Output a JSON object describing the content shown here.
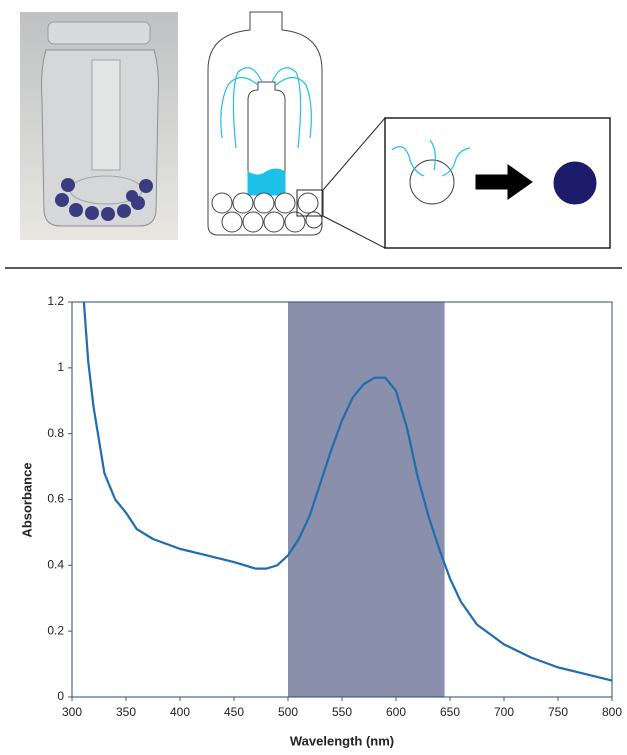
{
  "chart_data": {
    "type": "line",
    "y_label": "Absorbance",
    "x_label": "Wavelength (nm)",
    "xlim": [
      300,
      800
    ],
    "ylim": [
      0,
      1.2
    ],
    "xticks": [
      300,
      350,
      400,
      450,
      500,
      550,
      600,
      650,
      700,
      750,
      800
    ],
    "yticks": [
      0,
      0.2,
      0.4,
      0.6,
      0.8,
      1,
      1.2
    ],
    "highlight_band": [
      500,
      645
    ],
    "band_color": "#8a8fab",
    "series": [
      {
        "color": "#1f6db0",
        "x": [
          311,
          315,
          320,
          330,
          340,
          350,
          360,
          375,
          400,
          425,
          450,
          470,
          480,
          490,
          500,
          510,
          520,
          530,
          540,
          550,
          560,
          570,
          580,
          590,
          600,
          610,
          620,
          630,
          640,
          650,
          660,
          675,
          700,
          725,
          750,
          775,
          800
        ],
        "values": [
          1.2,
          1.02,
          0.88,
          0.68,
          0.6,
          0.56,
          0.51,
          0.48,
          0.45,
          0.43,
          0.41,
          0.39,
          0.39,
          0.4,
          0.43,
          0.48,
          0.55,
          0.65,
          0.75,
          0.84,
          0.91,
          0.95,
          0.97,
          0.97,
          0.93,
          0.82,
          0.67,
          0.55,
          0.45,
          0.36,
          0.29,
          0.22,
          0.16,
          0.12,
          0.09,
          0.07,
          0.05
        ]
      }
    ]
  }
}
